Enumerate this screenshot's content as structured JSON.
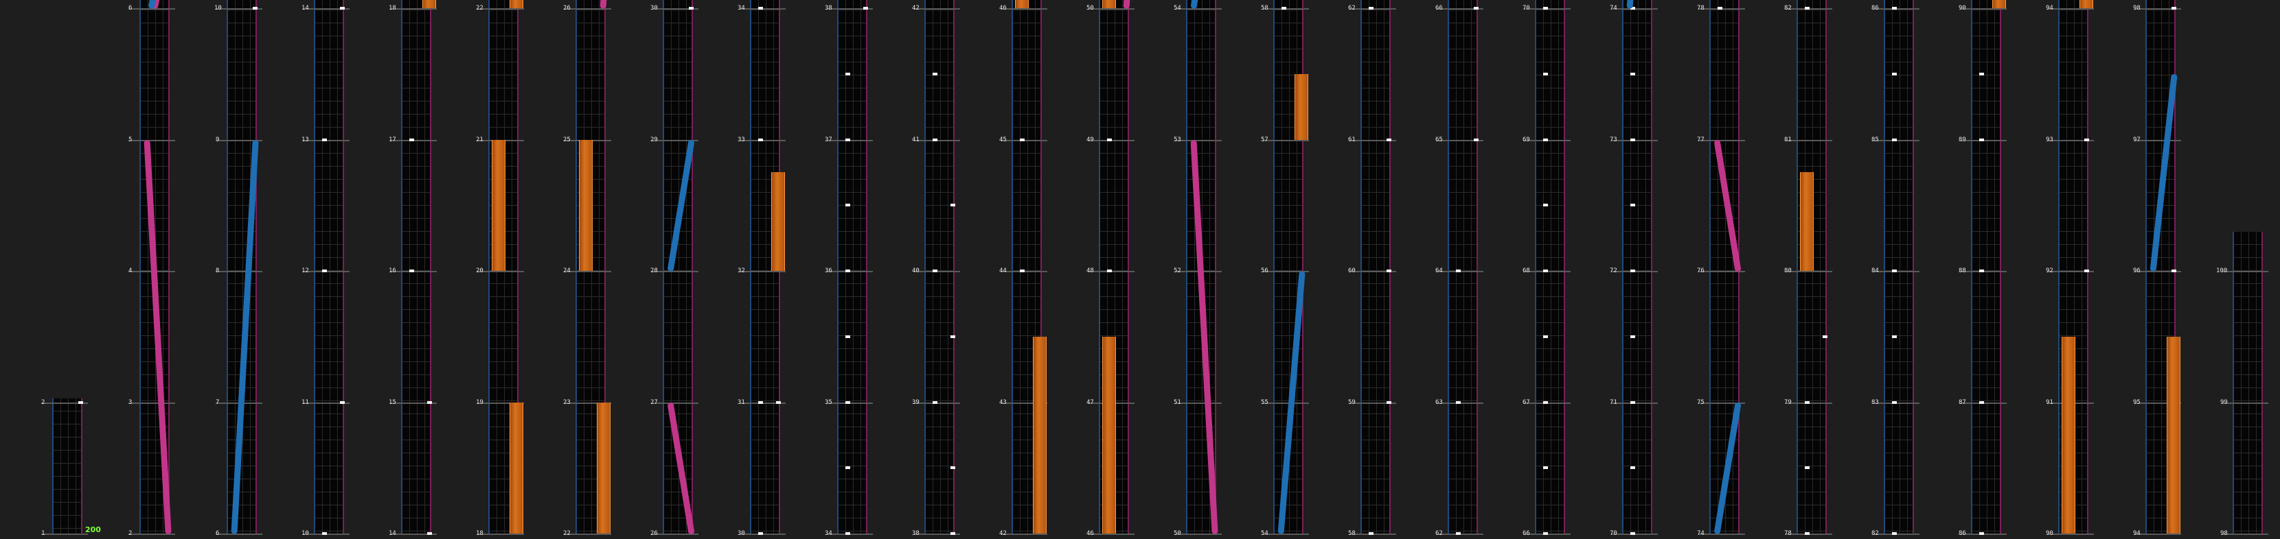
{
  "combo": "200",
  "colors": {
    "hold": "#d8731e",
    "slide_pink": "#c2368a",
    "slide_blue": "#1f6fb4",
    "lane_left": "#1e4a7a",
    "lane_right": "#7a1f5a",
    "combo": "#7cff3a"
  },
  "tracks": [
    {
      "start": 1,
      "labels": [
        "1",
        "2"
      ]
    },
    {
      "start": 2,
      "labels": [
        "2",
        "3",
        "4",
        "5",
        "6"
      ]
    },
    {
      "start": 6,
      "labels": [
        "6",
        "7",
        "8",
        "9",
        "10"
      ]
    },
    {
      "start": 10,
      "labels": [
        "10",
        "11",
        "12",
        "13",
        "14"
      ]
    },
    {
      "start": 14,
      "labels": [
        "14",
        "15",
        "16",
        "17",
        "18"
      ]
    },
    {
      "start": 18,
      "labels": [
        "18",
        "19",
        "20",
        "21",
        "22"
      ]
    },
    {
      "start": 22,
      "labels": [
        "22",
        "23",
        "24",
        "25",
        "26"
      ]
    },
    {
      "start": 26,
      "labels": [
        "26",
        "27",
        "28",
        "29",
        "30"
      ]
    },
    {
      "start": 30,
      "labels": [
        "30",
        "31",
        "32",
        "33",
        "34"
      ]
    },
    {
      "start": 34,
      "labels": [
        "34",
        "35",
        "36",
        "37",
        "38"
      ]
    },
    {
      "start": 38,
      "labels": [
        "38",
        "39",
        "40",
        "41",
        "42"
      ]
    },
    {
      "start": 42,
      "labels": [
        "42",
        "43",
        "44",
        "45",
        "46"
      ]
    },
    {
      "start": 46,
      "labels": [
        "46",
        "47",
        "48",
        "49",
        "50"
      ]
    },
    {
      "start": 50,
      "labels": [
        "50",
        "51",
        "52",
        "53",
        "54"
      ]
    },
    {
      "start": 54,
      "labels": [
        "54",
        "55",
        "56",
        "57",
        "58"
      ]
    },
    {
      "start": 58,
      "labels": [
        "58",
        "59",
        "60",
        "61",
        "62"
      ]
    },
    {
      "start": 62,
      "labels": [
        "62",
        "63",
        "64",
        "65",
        "66"
      ]
    },
    {
      "start": 66,
      "labels": [
        "66",
        "67",
        "68",
        "69",
        "70"
      ]
    },
    {
      "start": 70,
      "labels": [
        "70",
        "71",
        "72",
        "73",
        "74"
      ]
    },
    {
      "start": 74,
      "labels": [
        "74",
        "75",
        "76",
        "77",
        "78"
      ]
    },
    {
      "start": 78,
      "labels": [
        "78",
        "79",
        "80",
        "81",
        "82"
      ]
    },
    {
      "start": 82,
      "labels": [
        "82",
        "83",
        "84",
        "85",
        "86"
      ]
    },
    {
      "start": 86,
      "labels": [
        "86",
        "87",
        "88",
        "89",
        "90"
      ]
    },
    {
      "start": 90,
      "labels": [
        "90",
        "91",
        "92",
        "93",
        "94"
      ]
    },
    {
      "start": 94,
      "labels": [
        "94",
        "95",
        "96",
        "97",
        "98"
      ]
    },
    {
      "start": 98,
      "labels": [
        "98",
        "99",
        "100"
      ]
    }
  ],
  "notes": {
    "taps": [
      {
        "track": 0,
        "lane": 1,
        "pos": 1.0
      },
      {
        "track": 2,
        "lane": 1,
        "pos": 4.0
      },
      {
        "track": 3,
        "lane": 0,
        "pos": 0.0
      },
      {
        "track": 3,
        "lane": 1,
        "pos": 1.0
      },
      {
        "track": 3,
        "lane": 0,
        "pos": 2.0
      },
      {
        "track": 3,
        "lane": 0,
        "pos": 3.0
      },
      {
        "track": 3,
        "lane": 1,
        "pos": 4.0
      },
      {
        "track": 4,
        "lane": 1,
        "pos": 0.0
      },
      {
        "track": 4,
        "lane": 1,
        "pos": 1.0
      },
      {
        "track": 4,
        "lane": 0,
        "pos": 2.0
      },
      {
        "track": 4,
        "lane": 0,
        "pos": 3.0
      },
      {
        "track": 7,
        "lane": 1,
        "pos": 4.0
      },
      {
        "track": 8,
        "lane": 0,
        "pos": 0.0
      },
      {
        "track": 8,
        "lane": 0,
        "pos": 1.0
      },
      {
        "track": 8,
        "lane": 0,
        "pos": 3.0
      },
      {
        "track": 8,
        "lane": 0,
        "pos": 4.0
      },
      {
        "track": 9,
        "lane": 0,
        "pos": 0.0
      },
      {
        "track": 9,
        "lane": 0,
        "pos": 0.5
      },
      {
        "track": 9,
        "lane": 0,
        "pos": 1.0
      },
      {
        "track": 9,
        "lane": 0,
        "pos": 1.5
      },
      {
        "track": 9,
        "lane": 0,
        "pos": 2.0
      },
      {
        "track": 9,
        "lane": 0,
        "pos": 2.5
      },
      {
        "track": 9,
        "lane": 0,
        "pos": 3.0
      },
      {
        "track": 9,
        "lane": 0,
        "pos": 3.5
      },
      {
        "track": 9,
        "lane": 1,
        "pos": 4.0
      },
      {
        "track": 10,
        "lane": 1,
        "pos": 0.0
      },
      {
        "track": 10,
        "lane": 1,
        "pos": 0.5
      },
      {
        "track": 10,
        "lane": 0,
        "pos": 1.0
      },
      {
        "track": 10,
        "lane": 1,
        "pos": 1.5
      },
      {
        "track": 10,
        "lane": 0,
        "pos": 2.0
      },
      {
        "track": 10,
        "lane": 1,
        "pos": 2.5
      },
      {
        "track": 10,
        "lane": 0,
        "pos": 3.0
      },
      {
        "track": 10,
        "lane": 0,
        "pos": 3.5
      },
      {
        "track": 11,
        "lane": 0,
        "pos": 2.0
      },
      {
        "track": 11,
        "lane": 0,
        "pos": 3.0
      },
      {
        "track": 12,
        "lane": 0,
        "pos": 2.0
      },
      {
        "track": 12,
        "lane": 0,
        "pos": 3.0
      },
      {
        "track": 14,
        "lane": 0,
        "pos": 4.0
      },
      {
        "track": 15,
        "lane": 0,
        "pos": 0.0
      },
      {
        "track": 15,
        "lane": 1,
        "pos": 1.0
      },
      {
        "track": 15,
        "lane": 1,
        "pos": 2.0
      },
      {
        "track": 15,
        "lane": 1,
        "pos": 3.0
      },
      {
        "track": 15,
        "lane": 0,
        "pos": 4.0
      },
      {
        "track": 16,
        "lane": 0,
        "pos": 0.0
      },
      {
        "track": 16,
        "lane": 0,
        "pos": 1.0
      },
      {
        "track": 16,
        "lane": 0,
        "pos": 2.0
      },
      {
        "track": 16,
        "lane": 1,
        "pos": 3.0
      },
      {
        "track": 16,
        "lane": 1,
        "pos": 4.0
      },
      {
        "track": 17,
        "lane": 0,
        "pos": 0.0
      },
      {
        "track": 17,
        "lane": 0,
        "pos": 0.5
      },
      {
        "track": 17,
        "lane": 0,
        "pos": 1.0
      },
      {
        "track": 17,
        "lane": 0,
        "pos": 1.5
      },
      {
        "track": 17,
        "lane": 0,
        "pos": 2.0
      },
      {
        "track": 17,
        "lane": 0,
        "pos": 2.5
      },
      {
        "track": 17,
        "lane": 0,
        "pos": 3.0
      },
      {
        "track": 17,
        "lane": 0,
        "pos": 3.5
      },
      {
        "track": 17,
        "lane": 0,
        "pos": 4.0
      },
      {
        "track": 18,
        "lane": 0,
        "pos": 0.0
      },
      {
        "track": 18,
        "lane": 0,
        "pos": 0.5
      },
      {
        "track": 18,
        "lane": 0,
        "pos": 1.0
      },
      {
        "track": 18,
        "lane": 0,
        "pos": 1.5
      },
      {
        "track": 18,
        "lane": 0,
        "pos": 2.0
      },
      {
        "track": 18,
        "lane": 0,
        "pos": 2.5
      },
      {
        "track": 18,
        "lane": 0,
        "pos": 3.0
      },
      {
        "track": 18,
        "lane": 0,
        "pos": 3.5
      },
      {
        "track": 18,
        "lane": 0,
        "pos": 4.0
      },
      {
        "track": 19,
        "lane": 0,
        "pos": 4.0
      },
      {
        "track": 20,
        "lane": 0,
        "pos": 0.0
      },
      {
        "track": 20,
        "lane": 0,
        "pos": 0.5
      },
      {
        "track": 20,
        "lane": 0,
        "pos": 1.0
      },
      {
        "track": 20,
        "lane": 1,
        "pos": 1.5
      },
      {
        "track": 20,
        "lane": 0,
        "pos": 4.0
      },
      {
        "track": 21,
        "lane": 0,
        "pos": 0.0
      },
      {
        "track": 21,
        "lane": 0,
        "pos": 1.0
      },
      {
        "track": 21,
        "lane": 0,
        "pos": 1.5
      },
      {
        "track": 21,
        "lane": 0,
        "pos": 2.0
      },
      {
        "track": 21,
        "lane": 0,
        "pos": 3.0
      },
      {
        "track": 21,
        "lane": 0,
        "pos": 3.5
      },
      {
        "track": 21,
        "lane": 0,
        "pos": 4.0
      },
      {
        "track": 22,
        "lane": 0,
        "pos": 0.0
      },
      {
        "track": 22,
        "lane": 0,
        "pos": 1.0
      },
      {
        "track": 22,
        "lane": 0,
        "pos": 2.0
      },
      {
        "track": 22,
        "lane": 0,
        "pos": 3.0
      },
      {
        "track": 22,
        "lane": 0,
        "pos": 3.5
      },
      {
        "track": 23,
        "lane": 1,
        "pos": 3.0
      },
      {
        "track": 23,
        "lane": 1,
        "pos": 2.0
      },
      {
        "track": 24,
        "lane": 1,
        "pos": 2.0
      },
      {
        "track": 24,
        "lane": 1,
        "pos": 4.0
      },
      {
        "track": 8,
        "lane": 1,
        "pos": 1.0
      }
    ],
    "holds": [
      {
        "track": 4,
        "lane": 1,
        "from": 4.0,
        "to": 4.3
      },
      {
        "track": 5,
        "lane": 1,
        "from": 0.0,
        "to": 1.0
      },
      {
        "track": 5,
        "lane": 0,
        "from": 2.0,
        "to": 3.0
      },
      {
        "track": 5,
        "lane": 1,
        "from": 4.0,
        "to": 4.3
      },
      {
        "track": 6,
        "lane": 1,
        "from": 0.0,
        "to": 1.0
      },
      {
        "track": 6,
        "lane": 0,
        "from": 2.0,
        "to": 3.0
      },
      {
        "track": 8,
        "lane": 1,
        "from": 2.0,
        "to": 2.75
      },
      {
        "track": 11,
        "lane": 1,
        "from": 0.0,
        "to": 1.5
      },
      {
        "track": 11,
        "lane": 0,
        "from": 4.0,
        "to": 4.3
      },
      {
        "track": 12,
        "lane": 0,
        "from": 0.0,
        "to": 1.5
      },
      {
        "track": 12,
        "lane": 0,
        "from": 4.0,
        "to": 4.3
      },
      {
        "track": 14,
        "lane": 1,
        "from": 3.0,
        "to": 3.5
      },
      {
        "track": 20,
        "lane": 0,
        "from": 2.0,
        "to": 2.75
      },
      {
        "track": 22,
        "lane": 1,
        "from": 4.0,
        "to": 4.3
      },
      {
        "track": 23,
        "lane": 0,
        "from": 0.0,
        "to": 1.5
      },
      {
        "track": 23,
        "lane": 1,
        "from": 4.0,
        "to": 4.3
      },
      {
        "track": 24,
        "lane": 1,
        "from": 0.0,
        "to": 1.5
      }
    ],
    "slides": [
      {
        "track": 1,
        "color": "pink",
        "fromLane": -0.1,
        "fromPos": 3.0,
        "toLane": 1.1,
        "toPos": 0.0
      },
      {
        "track": 2,
        "color": "blue",
        "fromLane": -0.1,
        "fromPos": 0.0,
        "toLane": 1.1,
        "toPos": 3.0
      },
      {
        "track": 7,
        "color": "blue",
        "fromLane": -0.1,
        "fromPos": 2.0,
        "toLane": 1.1,
        "toPos": 3.0
      },
      {
        "track": 7,
        "color": "pink",
        "fromLane": -0.1,
        "fromPos": 1.0,
        "toLane": 1.1,
        "toPos": 0.0
      },
      {
        "track": 13,
        "color": "pink",
        "fromLane": -0.1,
        "fromPos": 3.0,
        "toLane": 1.1,
        "toPos": 0.0
      },
      {
        "track": 14,
        "color": "blue",
        "fromLane": -0.1,
        "fromPos": 0.0,
        "toLane": 1.1,
        "toPos": 2.0
      },
      {
        "track": 19,
        "color": "pink",
        "fromLane": -0.1,
        "fromPos": 3.0,
        "toLane": 1.1,
        "toPos": 2.0
      },
      {
        "track": 19,
        "color": "blue",
        "fromLane": -0.1,
        "fromPos": 0.0,
        "toLane": 1.1,
        "toPos": 1.0
      },
      {
        "track": 24,
        "color": "blue",
        "fromLane": -0.1,
        "fromPos": 2.0,
        "toLane": 1.1,
        "toPos": 3.5
      },
      {
        "track": 1,
        "color": "pink",
        "fromLane": 0.3,
        "fromPos": 4.0,
        "toLane": 0.6,
        "toPos": 4.2
      },
      {
        "track": 1,
        "color": "blue",
        "fromLane": 0.1,
        "fromPos": 4.0,
        "toLane": 0.3,
        "toPos": 4.15
      },
      {
        "track": 6,
        "color": "pink",
        "fromLane": 1.0,
        "fromPos": 4.0,
        "toLane": 1.1,
        "toPos": 4.2
      },
      {
        "track": 12,
        "color": "pink",
        "fromLane": 1.0,
        "fromPos": 4.0,
        "toLane": 1.1,
        "toPos": 4.2
      },
      {
        "track": 13,
        "color": "blue",
        "fromLane": -0.1,
        "fromPos": 4.0,
        "toLane": 0.1,
        "toPos": 4.2
      },
      {
        "track": 18,
        "color": "blue",
        "fromLane": -0.1,
        "fromPos": 4.0,
        "toLane": 0.0,
        "toPos": 4.2
      }
    ]
  }
}
